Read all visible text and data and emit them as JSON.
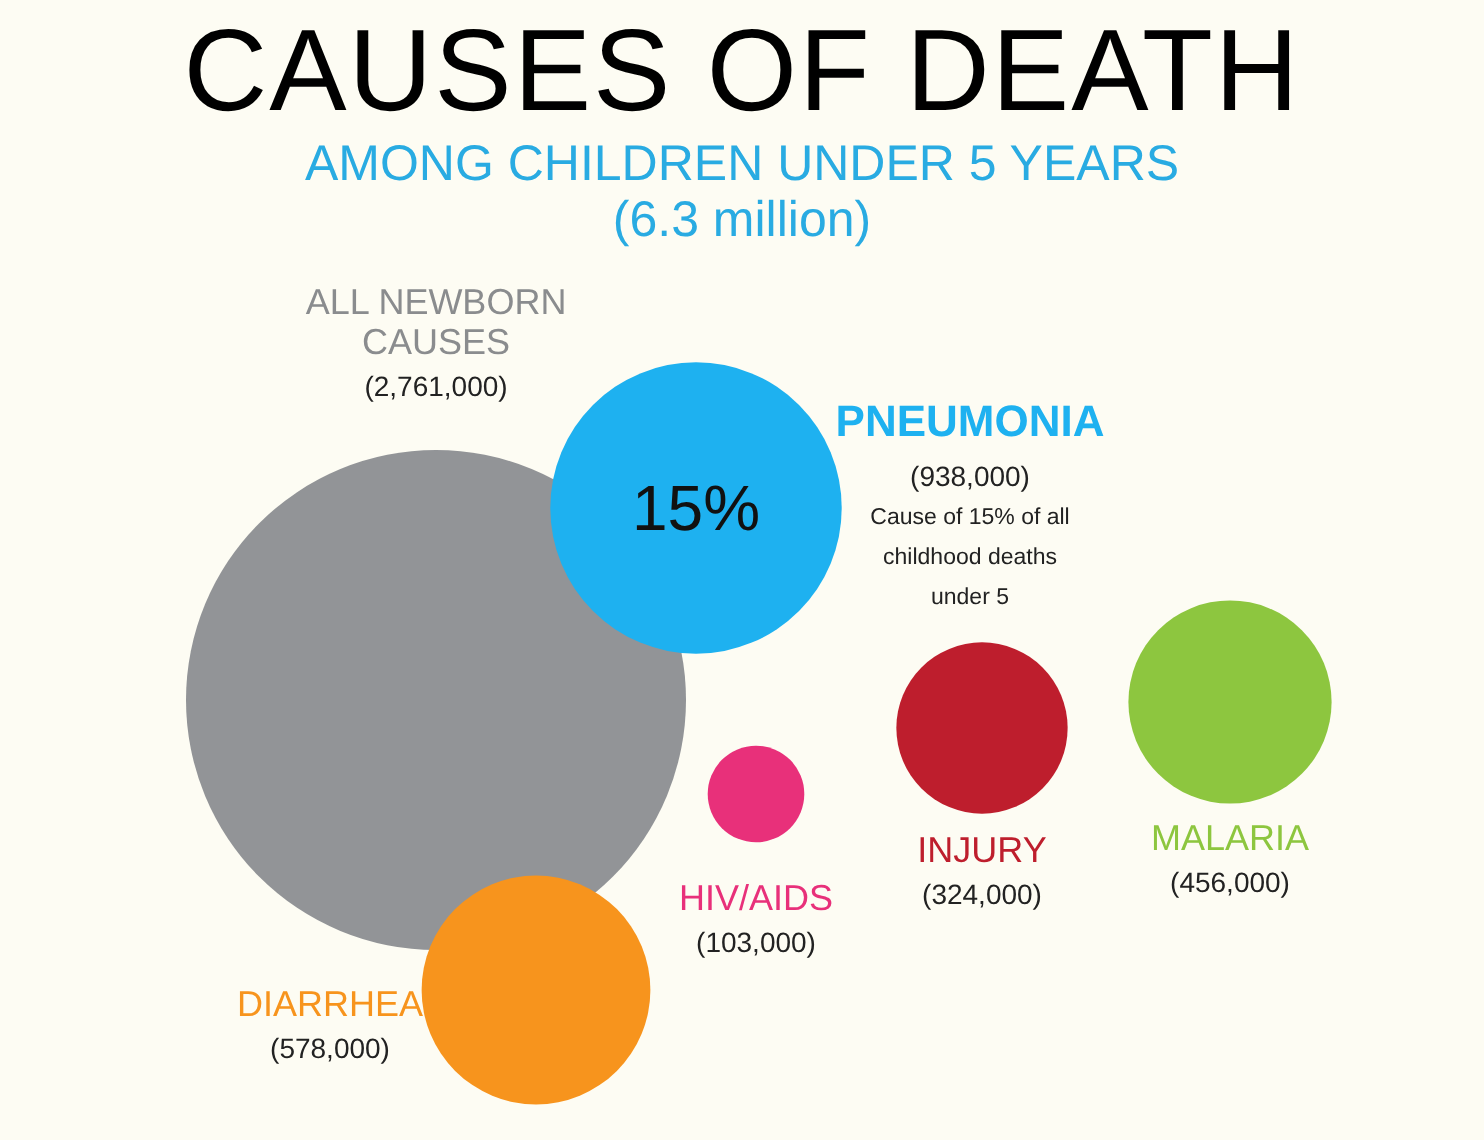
{
  "chart_data": {
    "type": "other",
    "title": "CAUSES OF DEATH",
    "subtitle": "AMONG CHILDREN UNDER 5 YEARS",
    "categories": [
      "ALL NEWBORN CAUSES",
      "PNEUMONIA",
      "DIARRHEA",
      "HIV/AIDS",
      "INJURY",
      "MALARIA"
    ],
    "values": [
      2761000,
      938000,
      578000,
      103000,
      324000,
      456000
    ],
    "value_labels": [
      "(2,761,000)",
      "(938,000)",
      "(578,000)",
      "(103,000)",
      "(324,000)",
      "(456,000)"
    ],
    "colors": [
      "#929497",
      "#1eb1f0",
      "#f7941d",
      "#e8307a",
      "#be1e2d",
      "#8dc63f"
    ],
    "annotations": [
      "(6.3 million)",
      {
        "text": "15%",
        "x": "PNEUMONIA"
      },
      "Cause of 15% of all childhood deaths under 5"
    ]
  }
}
